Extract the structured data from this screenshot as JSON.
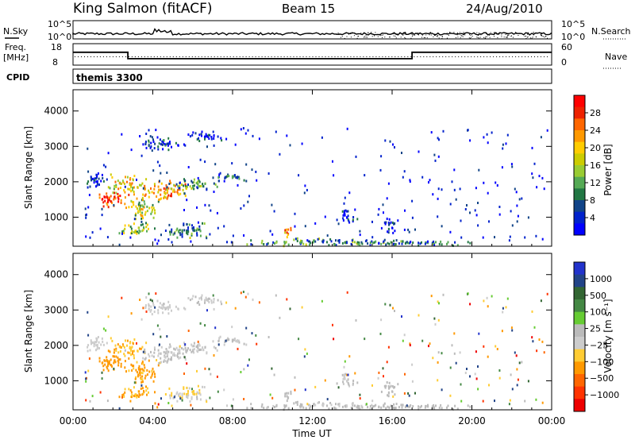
{
  "header": {
    "station": "King Salmon (fitACF)",
    "beam": "Beam 15",
    "date": "24/Aug/2010"
  },
  "top_panels": {
    "nsky_label": "N.Sky",
    "nsearch_label": "N.Search",
    "count_ticks": [
      "10^5",
      "10^0"
    ],
    "freq_label_1": "Freq.",
    "freq_label_2": "[MHz]",
    "freq_ticks": [
      "18",
      "8"
    ],
    "nave_label": "Nave",
    "nave_ticks": [
      "60",
      "0"
    ],
    "cpid_label": "CPID",
    "cpid_value": "themis 3300",
    "frequency_steps": [
      {
        "from": 0.0,
        "to": 2.75,
        "mhz": 14.0
      },
      {
        "from": 2.75,
        "to": 17.0,
        "mhz": 11.0
      },
      {
        "from": 17.0,
        "to": 24.0,
        "mhz": 14.0
      }
    ]
  },
  "x_axis": {
    "label": "Time UT",
    "ticks": [
      "00:00",
      "04:00",
      "08:00",
      "12:00",
      "16:00",
      "20:00",
      "00:00"
    ]
  },
  "power_colorbar": {
    "title": "Power [dB]",
    "ticks": [
      "28",
      "24",
      "20",
      "16",
      "12",
      "8",
      "4"
    ],
    "colors": [
      "#ff0000",
      "#ee2200",
      "#ff6600",
      "#ff9900",
      "#ffcc00",
      "#cccc00",
      "#99cc33",
      "#55aa55",
      "#227744",
      "#114488",
      "#0022cc",
      "#0000ff"
    ]
  },
  "velocity_colorbar": {
    "title": "Velocity [m s⁻¹]",
    "ticks": [
      "1000",
      "500",
      "100",
      "25",
      "−25",
      "−100",
      "−500",
      "−1000"
    ],
    "colors": [
      "#2233cc",
      "#224488",
      "#336633",
      "#448844",
      "#66cc33",
      "#bbbbbb",
      "#cccccc",
      "#ffcc33",
      "#ff9900",
      "#ff6600",
      "#ff3300",
      "#ee0000"
    ]
  },
  "chart_data": [
    {
      "type": "heatmap",
      "panel": "power",
      "ylabel": "Slant Range [km]",
      "xlabel": "Time UT",
      "xlim": [
        0,
        24
      ],
      "ylim": [
        180,
        4600
      ],
      "yticks": [
        1000,
        2000,
        3000,
        4000
      ],
      "clim": [
        3,
        31
      ],
      "blobs": [
        {
          "t": 2.0,
          "r": 1500,
          "dt": 0.9,
          "dr": 280,
          "level": 27
        },
        {
          "t": 2.7,
          "r": 1950,
          "dt": 1.1,
          "dr": 300,
          "level": 20
        },
        {
          "t": 3.5,
          "r": 1300,
          "dt": 1.0,
          "dr": 350,
          "level": 17
        },
        {
          "t": 4.6,
          "r": 1800,
          "dt": 1.3,
          "dr": 300,
          "level": 22
        },
        {
          "t": 6.1,
          "r": 1950,
          "dt": 1.5,
          "dr": 200,
          "level": 13
        },
        {
          "t": 3.2,
          "r": 700,
          "dt": 1.0,
          "dr": 220,
          "level": 16
        },
        {
          "t": 5.7,
          "r": 650,
          "dt": 1.3,
          "dr": 250,
          "level": 12
        },
        {
          "t": 4.5,
          "r": 3100,
          "dt": 1.2,
          "dr": 220,
          "level": 8
        },
        {
          "t": 6.5,
          "r": 3300,
          "dt": 1.0,
          "dr": 180,
          "level": 6
        },
        {
          "t": 1.0,
          "r": 2050,
          "dt": 0.6,
          "dr": 300,
          "level": 6
        },
        {
          "t": 7.8,
          "r": 2150,
          "dt": 1.0,
          "dr": 150,
          "level": 9
        },
        {
          "t": 10.7,
          "r": 620,
          "dt": 0.3,
          "dr": 200,
          "level": 22
        },
        {
          "t": 13.7,
          "r": 1050,
          "dt": 0.6,
          "dr": 200,
          "level": 5
        },
        {
          "t": 15.8,
          "r": 800,
          "dt": 0.5,
          "dr": 250,
          "level": 6
        },
        {
          "t": 12.5,
          "r": 330,
          "dt": 4.5,
          "dr": 120,
          "level": 12
        },
        {
          "t": 17.5,
          "r": 300,
          "dt": 3.0,
          "dr": 90,
          "level": 9
        }
      ]
    },
    {
      "type": "heatmap",
      "panel": "velocity",
      "ylabel": "Slant Range [km]",
      "xlabel": "Time UT",
      "xlim": [
        0,
        24
      ],
      "ylim": [
        180,
        4600
      ],
      "yticks": [
        1000,
        2000,
        3000,
        4000
      ],
      "clim": [
        -1000,
        1000
      ],
      "blobs": [
        {
          "t": 2.0,
          "r": 1500,
          "dt": 0.9,
          "dr": 280,
          "level": -420
        },
        {
          "t": 2.7,
          "r": 1950,
          "dt": 1.1,
          "dr": 300,
          "level": -300
        },
        {
          "t": 3.5,
          "r": 1300,
          "dt": 1.0,
          "dr": 350,
          "level": -380
        },
        {
          "t": 4.6,
          "r": 1800,
          "dt": 1.3,
          "dr": 300,
          "level": 0
        },
        {
          "t": 6.1,
          "r": 1950,
          "dt": 1.5,
          "dr": 200,
          "level": 0
        },
        {
          "t": 3.2,
          "r": 700,
          "dt": 1.0,
          "dr": 220,
          "level": -350
        },
        {
          "t": 5.7,
          "r": 650,
          "dt": 1.3,
          "dr": 250,
          "level": -150
        },
        {
          "t": 4.5,
          "r": 3100,
          "dt": 1.2,
          "dr": 220,
          "level": -60
        },
        {
          "t": 6.5,
          "r": 3300,
          "dt": 1.0,
          "dr": 180,
          "level": 0
        },
        {
          "t": 1.0,
          "r": 2050,
          "dt": 0.6,
          "dr": 300,
          "level": -80
        },
        {
          "t": 7.8,
          "r": 2150,
          "dt": 1.0,
          "dr": 150,
          "level": 0
        },
        {
          "t": 10.7,
          "r": 620,
          "dt": 0.3,
          "dr": 200,
          "level": 60
        },
        {
          "t": 13.7,
          "r": 1050,
          "dt": 0.6,
          "dr": 200,
          "level": 0
        },
        {
          "t": 15.8,
          "r": 800,
          "dt": 0.5,
          "dr": 250,
          "level": 70
        },
        {
          "t": 12.5,
          "r": 330,
          "dt": 4.5,
          "dr": 120,
          "level": 40
        },
        {
          "t": 17.5,
          "r": 300,
          "dt": 3.0,
          "dr": 90,
          "level": 80
        }
      ]
    }
  ]
}
